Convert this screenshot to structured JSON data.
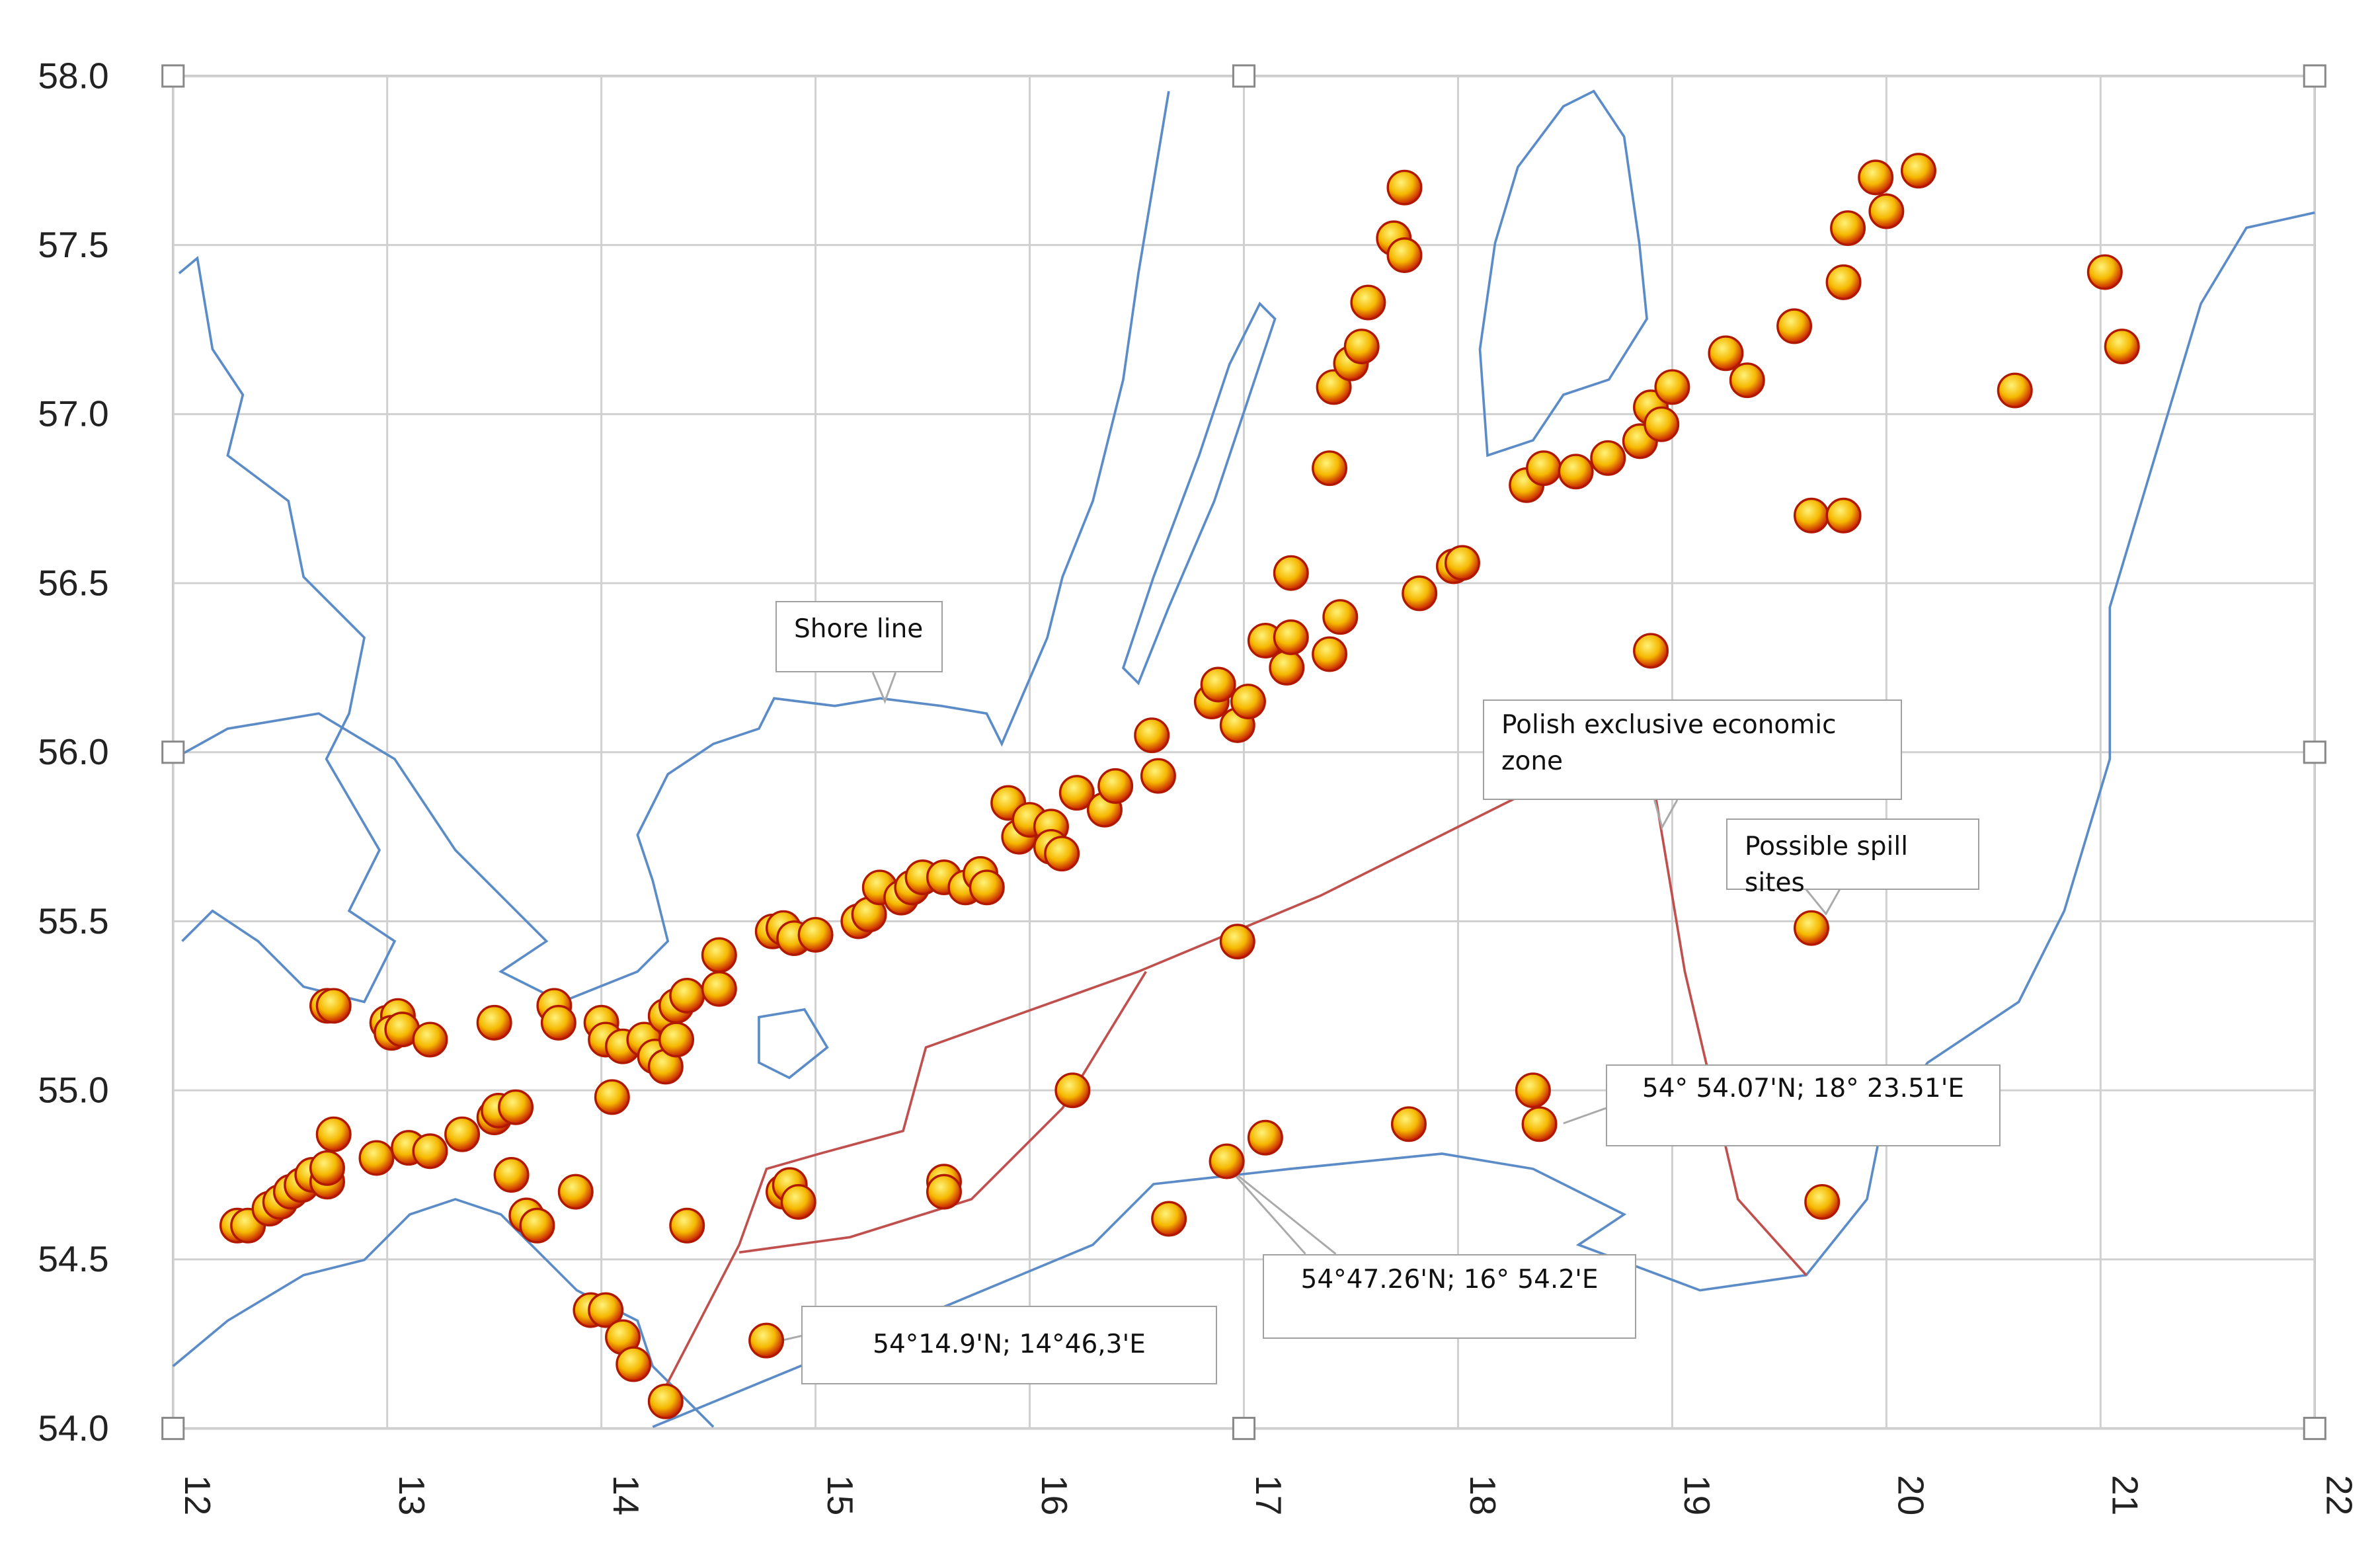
{
  "chart_data": {
    "type": "scatter",
    "annotations": [
      "Shore line",
      "Polish exclusive economic zone",
      "Possible spill sites",
      "54° 54.07'N; 18° 23.51'E",
      "54°47.26'N; 16° 54.2'E",
      "54°14.9'N; 14°46,3'E"
    ],
    "color": "#f5b800",
    "x": [
      12.3,
      12.35,
      12.45,
      12.5,
      12.55,
      12.6,
      12.65,
      12.72,
      12.72,
      12.75,
      12.95,
      13.1,
      13.2,
      13.35,
      13.5,
      13.52,
      13.6,
      13.58,
      13.65,
      13.7,
      13.88,
      14.4,
      13.95,
      14.02,
      14.1,
      14.15,
      14.3,
      14.77,
      12.72,
      12.75,
      13.0,
      13.05,
      13.02,
      13.07,
      13.2,
      13.5,
      13.78,
      13.8,
      14.0,
      14.02,
      14.1,
      14.2,
      14.25,
      14.3,
      14.3,
      14.35,
      14.4,
      14.35,
      14.55,
      14.55,
      14.05,
      14.8,
      14.85,
      14.9,
      15.0,
      15.2,
      15.25,
      15.3,
      15.4,
      15.45,
      15.5,
      15.6,
      15.7,
      15.77,
      15.8,
      15.9,
      15.95,
      16.0,
      16.1,
      16.1,
      16.15,
      16.22,
      16.35,
      16.4,
      16.57,
      16.6,
      16.85,
      16.88,
      16.97,
      17.02,
      17.1,
      17.2,
      17.22,
      17.22,
      17.4,
      17.45,
      17.4,
      17.42,
      17.5,
      17.55,
      17.58,
      17.7,
      17.75,
      17.75,
      17.82,
      17.98,
      18.02,
      18.32,
      18.4,
      18.55,
      18.7,
      18.85,
      18.9,
      18.95,
      19.0,
      19.25,
      19.35,
      19.57,
      19.8,
      19.82,
      19.95,
      20.0,
      20.15,
      20.6,
      21.02,
      21.1,
      19.65,
      19.8,
      18.9,
      19.65,
      16.97,
      14.85,
      14.88,
      14.92,
      15.6,
      15.6,
      16.2,
      16.65,
      16.92,
      17.1,
      17.77,
      18.35,
      18.38,
      19.7
    ],
    "values": [
      54.6,
      54.6,
      54.65,
      54.67,
      54.7,
      54.72,
      54.75,
      54.73,
      54.77,
      54.87,
      54.8,
      54.83,
      54.82,
      54.87,
      54.92,
      54.94,
      54.95,
      54.75,
      54.63,
      54.6,
      54.7,
      54.6,
      54.35,
      54.35,
      54.27,
      54.19,
      54.08,
      54.26,
      55.25,
      55.25,
      55.2,
      55.22,
      55.17,
      55.18,
      55.15,
      55.2,
      55.25,
      55.2,
      55.2,
      55.15,
      55.13,
      55.15,
      55.1,
      55.07,
      55.22,
      55.25,
      55.28,
      55.15,
      55.3,
      55.4,
      54.98,
      55.47,
      55.48,
      55.45,
      55.46,
      55.5,
      55.52,
      55.6,
      55.57,
      55.6,
      55.63,
      55.63,
      55.6,
      55.64,
      55.6,
      55.85,
      55.75,
      55.8,
      55.78,
      55.72,
      55.7,
      55.88,
      55.83,
      55.9,
      56.05,
      55.93,
      56.15,
      56.2,
      56.08,
      56.15,
      56.33,
      56.25,
      56.34,
      56.53,
      56.29,
      56.4,
      56.84,
      57.08,
      57.15,
      57.2,
      57.33,
      57.52,
      57.47,
      57.67,
      56.47,
      56.55,
      56.56,
      56.79,
      56.84,
      56.83,
      56.87,
      56.92,
      57.02,
      56.97,
      57.08,
      57.18,
      57.1,
      57.26,
      57.39,
      57.55,
      57.7,
      57.6,
      57.72,
      57.07,
      57.42,
      57.2,
      56.7,
      56.7,
      56.3,
      55.48,
      55.44,
      54.7,
      54.72,
      54.67,
      54.73,
      54.7,
      55.0,
      54.62,
      54.79,
      54.86,
      54.9,
      55.0,
      54.9,
      54.67
    ],
    "xlim": [
      12,
      22
    ],
    "ylim": [
      54,
      58
    ],
    "xticks": [
      12,
      13,
      14,
      15,
      16,
      17,
      18,
      19,
      20,
      21,
      22
    ],
    "yticks": [
      {
        "value": 54,
        "label": "54.0"
      },
      54.5,
      {
        "value": 55,
        "label": "55.0"
      },
      55.5,
      {
        "value": 56,
        "label": "56.0"
      },
      56.5,
      {
        "value": 57,
        "label": "57.0"
      },
      57.5,
      {
        "value": 58,
        "label": "58.0"
      }
    ],
    "grid": true
  }
}
